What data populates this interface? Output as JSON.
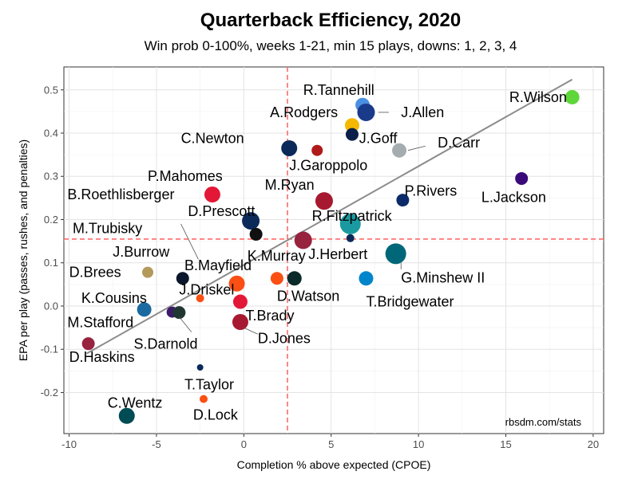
{
  "chart_data": {
    "type": "scatter",
    "title": "Quarterback Efficiency, 2020",
    "subtitle": "Win prob 0-100%, weeks 1-21, min 15 plays, downs: 1, 2, 3, 4",
    "xlabel": "Completion % above expected (CPOE)",
    "ylabel": "EPA per play (passes, rushes, and penalties)",
    "caption": "rbsdm.com/stats",
    "xlim": [
      -10.3,
      20.6
    ],
    "ylim": [
      -0.295,
      0.553
    ],
    "xticks": [
      -10,
      -5,
      0,
      5,
      10,
      15,
      20
    ],
    "yticks": [
      -0.2,
      -0.1,
      0.0,
      0.1,
      0.2,
      0.3,
      0.4,
      0.5
    ],
    "xtick_labels": [
      "-10",
      "-5",
      "0",
      "5",
      "10",
      "15",
      "20"
    ],
    "ytick_labels": [
      "-0.2",
      "-0.1",
      "0.0",
      "0.1",
      "0.2",
      "0.3",
      "0.4",
      "0.5"
    ],
    "grid": true,
    "reference_lines": {
      "x_mean": 2.5,
      "y_mean": 0.155,
      "color": "#ff6b6b"
    },
    "trend_line": {
      "x": [
        -9.0,
        18.8
      ],
      "y": [
        -0.11,
        0.524
      ],
      "color": "#8c8c8c"
    },
    "points": [
      {
        "x": 18.8,
        "y": 0.483,
        "size": 9,
        "color": "#5fd63a",
        "label": "R.Wilson"
      },
      {
        "x": 6.8,
        "y": 0.465,
        "size": 9,
        "color": "#4a90e2",
        "label": "R.Tannehill"
      },
      {
        "x": 7.0,
        "y": 0.448,
        "size": 11,
        "color": "#1a3a8a",
        "label": "J.Allen"
      },
      {
        "x": 6.2,
        "y": 0.418,
        "size": 9,
        "color": "#f5b800",
        "label": "A.Rodgers"
      },
      {
        "x": 6.2,
        "y": 0.397,
        "size": 8,
        "color": "#0b1f4a",
        "label": "J.Goff"
      },
      {
        "x": 2.6,
        "y": 0.365,
        "size": 10,
        "color": "#0b2a5a",
        "label": "C.Newton"
      },
      {
        "x": 4.2,
        "y": 0.36,
        "size": 7,
        "color": "#b01a1a",
        "label": "J.Garoppolo"
      },
      {
        "x": 8.9,
        "y": 0.36,
        "size": 9,
        "color": "#a5acaf",
        "label": "D.Carr"
      },
      {
        "x": 15.9,
        "y": 0.295,
        "size": 8,
        "color": "#3b0a7a",
        "label": "L.Jackson"
      },
      {
        "x": -1.8,
        "y": 0.258,
        "size": 10,
        "color": "#e31837",
        "label": "P.Mahomes"
      },
      {
        "x": 4.6,
        "y": 0.243,
        "size": 11,
        "color": "#a71930",
        "label": "M.Ryan"
      },
      {
        "x": 9.1,
        "y": 0.245,
        "size": 8,
        "color": "#0b2a6a",
        "label": "P.Rivers"
      },
      {
        "x": 0.4,
        "y": 0.197,
        "size": 11,
        "color": "#0b2a5a",
        "label": "D.Prescott"
      },
      {
        "x": 6.1,
        "y": 0.19,
        "size": 13,
        "color": "#1a9aa0",
        "label": "R.Fitzpatrick"
      },
      {
        "x": 0.7,
        "y": 0.166,
        "size": 8,
        "color": "#101010",
        "label": ""
      },
      {
        "x": 3.4,
        "y": 0.152,
        "size": 11,
        "color": "#97233f",
        "label": "K.Murray"
      },
      {
        "x": 6.1,
        "y": 0.157,
        "size": 5,
        "color": "#0b2a5a",
        "label": "J.Herbert"
      },
      {
        "x": 8.7,
        "y": 0.121,
        "size": 13,
        "color": "#006778",
        "label": "G.Minshew II"
      },
      {
        "x": -5.5,
        "y": 0.078,
        "size": 7,
        "color": "#b39a5b",
        "label": "D.Brees"
      },
      {
        "x": -3.5,
        "y": 0.064,
        "size": 8,
        "color": "#0b162a",
        "label": "J.Burrow"
      },
      {
        "x": -0.4,
        "y": 0.052,
        "size": 10,
        "color": "#fb4f14",
        "label": "B.Mayfield"
      },
      {
        "x": 1.9,
        "y": 0.064,
        "size": 8,
        "color": "#fb4f14",
        "label": ""
      },
      {
        "x": 2.9,
        "y": 0.064,
        "size": 9,
        "color": "#0b2a2a",
        "label": "D.Watson"
      },
      {
        "x": 7.0,
        "y": 0.064,
        "size": 9,
        "color": "#0085ca",
        "label": "T.Bridgewater"
      },
      {
        "x": -2.5,
        "y": 0.018,
        "size": 5,
        "color": "#fb4f14",
        "label": "J.Driskel"
      },
      {
        "x": -0.2,
        "y": 0.01,
        "size": 9,
        "color": "#e31837",
        "label": ""
      },
      {
        "x": -5.7,
        "y": -0.008,
        "size": 9,
        "color": "#1a6aa0",
        "label": "K.Cousins"
      },
      {
        "x": -4.1,
        "y": -0.014,
        "size": 7,
        "color": "#3b1a6a",
        "label": ""
      },
      {
        "x": -3.7,
        "y": -0.015,
        "size": 8,
        "color": "#203731",
        "label": "S.Darnold"
      },
      {
        "x": -0.2,
        "y": -0.037,
        "size": 10,
        "color": "#a71930",
        "label": "T.Brady"
      },
      {
        "x": -8.9,
        "y": -0.087,
        "size": 8,
        "color": "#97233f",
        "label": "M.Stafford"
      },
      {
        "x": -2.5,
        "y": -0.142,
        "size": 4,
        "color": "#0b2a5a",
        "label": "T.Taylor"
      },
      {
        "x": -2.3,
        "y": -0.215,
        "size": 5,
        "color": "#fb4f14",
        "label": "D.Lock"
      },
      {
        "x": -6.7,
        "y": -0.254,
        "size": 10,
        "color": "#004c54",
        "label": "C.Wentz"
      }
    ],
    "labels": [
      {
        "text": "R.Wilson",
        "x": 15.2,
        "y": 0.483,
        "line": null
      },
      {
        "text": "R.Tannehill",
        "x": 3.4,
        "y": 0.5,
        "line": null
      },
      {
        "text": "J.Allen",
        "x": 9.0,
        "y": 0.448,
        "line": [
          7.7,
          0.448,
          8.3,
          0.448
        ]
      },
      {
        "text": "A.Rodgers",
        "x": 1.5,
        "y": 0.448,
        "line": null
      },
      {
        "text": "J.Goff",
        "x": 6.6,
        "y": 0.388,
        "line": null
      },
      {
        "text": "C.Newton",
        "x": -3.6,
        "y": 0.388,
        "line": null
      },
      {
        "text": "J.Garoppolo",
        "x": 2.6,
        "y": 0.325,
        "line": null
      },
      {
        "text": "D.Carr",
        "x": 11.1,
        "y": 0.378,
        "line": [
          9.4,
          0.36,
          10.4,
          0.37
        ]
      },
      {
        "text": "L.Jackson",
        "x": 13.6,
        "y": 0.252,
        "line": null
      },
      {
        "text": "P.Mahomes",
        "x": -5.5,
        "y": 0.3,
        "line": null
      },
      {
        "text": "B.Roethlisberger",
        "x": -10.1,
        "y": 0.258,
        "line": null
      },
      {
        "text": "M.Ryan",
        "x": 1.2,
        "y": 0.28,
        "line": null
      },
      {
        "text": "P.Rivers",
        "x": 9.2,
        "y": 0.266,
        "line": null
      },
      {
        "text": "D.Prescott",
        "x": -3.2,
        "y": 0.219,
        "line": null
      },
      {
        "text": "R.Fitzpatrick",
        "x": 3.9,
        "y": 0.208,
        "line": null
      },
      {
        "text": "M.Trubisky",
        "x": -9.8,
        "y": 0.18,
        "line": [
          -3.6,
          0.19,
          -2.6,
          0.108
        ]
      },
      {
        "text": "J.Burrow",
        "x": -7.5,
        "y": 0.125,
        "line": null
      },
      {
        "text": "K.Murray",
        "x": 0.2,
        "y": 0.116,
        "line": null
      },
      {
        "text": "J.Herbert",
        "x": 3.7,
        "y": 0.12,
        "line": null
      },
      {
        "text": "B.Mayfield",
        "x": -3.4,
        "y": 0.094,
        "line": null
      },
      {
        "text": "G.Minshew II",
        "x": 9.0,
        "y": 0.065,
        "line": [
          9.0,
          0.1,
          9.0,
          0.085
        ]
      },
      {
        "text": "D.Brees",
        "x": -10.0,
        "y": 0.078,
        "line": null
      },
      {
        "text": "J.Driskel",
        "x": -3.7,
        "y": 0.038,
        "line": null
      },
      {
        "text": "D.Watson",
        "x": 1.9,
        "y": 0.023,
        "line": null
      },
      {
        "text": "T.Bridgewater",
        "x": 7.0,
        "y": 0.01,
        "line": null
      },
      {
        "text": "K.Cousins",
        "x": -9.3,
        "y": 0.018,
        "line": null
      },
      {
        "text": "T.Brady",
        "x": 0.1,
        "y": -0.022,
        "line": null
      },
      {
        "text": "M.Stafford",
        "x": -10.1,
        "y": -0.038,
        "line": null
      },
      {
        "text": "D.Jones",
        "x": 0.8,
        "y": -0.075,
        "line": [
          0.0,
          -0.05,
          0.8,
          -0.065
        ]
      },
      {
        "text": "S.Darnold",
        "x": -6.3,
        "y": -0.088,
        "line": [
          -3.7,
          -0.025,
          -3.0,
          -0.06
        ]
      },
      {
        "text": "D.Haskins",
        "x": -10.0,
        "y": -0.118,
        "line": null
      },
      {
        "text": "T.Taylor",
        "x": -3.4,
        "y": -0.182,
        "line": null
      },
      {
        "text": "D.Lock",
        "x": -2.9,
        "y": -0.252,
        "line": null
      },
      {
        "text": "C.Wentz",
        "x": -7.8,
        "y": -0.224,
        "line": null
      }
    ]
  }
}
